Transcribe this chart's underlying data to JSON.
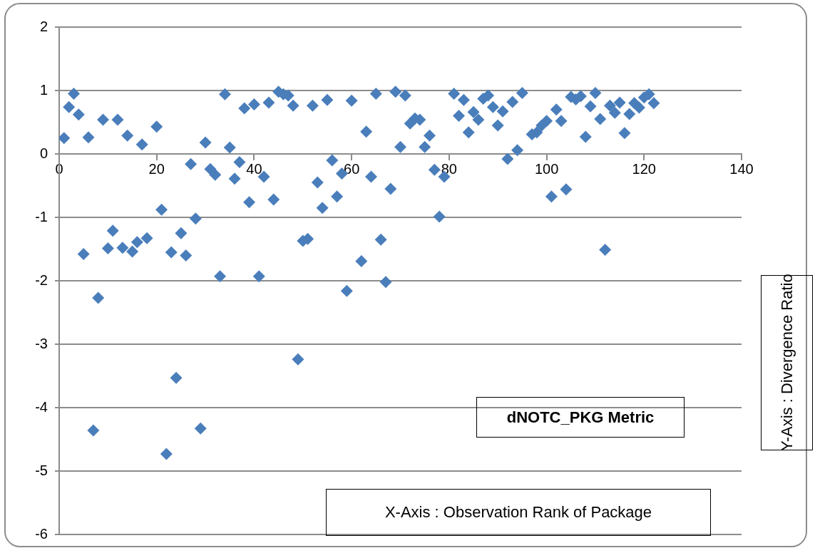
{
  "chart_data": {
    "type": "scatter",
    "xlabel": "X-Axis : Observation Rank of Package",
    "ylabel": "Y-Axis : Divergence Ratio",
    "annotations": [
      "dNOTC_PKG Metric"
    ],
    "xlim": [
      0,
      140
    ],
    "xticks": [
      0,
      20,
      40,
      60,
      80,
      100,
      120,
      140
    ],
    "ylim": [
      -6,
      2
    ],
    "yticks": [
      -6,
      -5,
      -4,
      -3,
      -2,
      -1,
      0,
      1,
      2
    ],
    "grid": "y",
    "legend": false,
    "marker": "diamond",
    "series": [
      {
        "color": "#4a7ebb",
        "x": [
          1,
          2,
          3,
          4,
          5,
          6,
          7,
          8,
          9,
          10,
          11,
          12,
          13,
          14,
          15,
          16,
          17,
          18,
          20,
          21,
          22,
          23,
          24,
          25,
          26,
          27,
          28,
          29,
          30,
          31,
          32,
          33,
          34,
          35,
          36,
          37,
          38,
          39,
          40,
          41,
          42,
          43,
          44,
          45,
          46,
          47,
          48,
          49,
          50,
          51,
          52,
          53,
          54,
          55,
          56,
          57,
          58,
          59,
          60,
          62,
          63,
          64,
          65,
          66,
          67,
          68,
          69,
          70,
          71,
          72,
          73,
          74,
          75,
          76,
          77,
          78,
          79,
          81,
          82,
          83,
          84,
          85,
          86,
          87,
          88,
          89,
          90,
          91,
          92,
          93,
          94,
          95,
          97,
          98,
          99,
          100,
          101,
          102,
          103,
          104,
          105,
          106,
          107,
          108,
          109,
          110,
          111,
          112,
          113,
          114,
          115,
          116,
          117,
          118,
          119,
          120,
          121,
          122
        ],
        "values": [
          0.25,
          0.74,
          0.95,
          0.62,
          -1.58,
          0.26,
          -4.36,
          -2.27,
          0.54,
          -1.49,
          -1.21,
          0.54,
          -1.48,
          0.29,
          -1.54,
          -1.39,
          0.15,
          -1.33,
          0.43,
          -0.88,
          -4.73,
          -1.55,
          -3.53,
          -1.25,
          -1.6,
          -0.16,
          -1.02,
          -4.33,
          0.18,
          -0.24,
          -0.33,
          -1.93,
          0.94,
          0.1,
          -0.39,
          -0.13,
          0.72,
          -0.76,
          0.78,
          -1.93,
          -0.36,
          0.81,
          -0.72,
          0.98,
          0.94,
          0.92,
          0.76,
          -3.24,
          -1.37,
          -1.34,
          0.76,
          -0.45,
          -0.85,
          0.85,
          -0.1,
          -0.67,
          -0.31,
          -2.16,
          0.84,
          -1.69,
          0.35,
          -0.36,
          0.95,
          -1.35,
          -2.02,
          -0.55,
          0.98,
          0.11,
          0.92,
          0.48,
          0.56,
          0.54,
          0.11,
          0.29,
          -0.25,
          -0.99,
          -0.36,
          0.95,
          0.6,
          0.85,
          0.34,
          0.66,
          0.54,
          0.87,
          0.92,
          0.74,
          0.45,
          0.67,
          -0.08,
          0.82,
          0.06,
          0.96,
          0.31,
          0.34,
          0.45,
          0.52,
          -0.67,
          0.7,
          0.52,
          -0.56,
          0.9,
          0.86,
          0.91,
          0.27,
          0.75,
          0.96,
          0.55,
          -1.51,
          0.76,
          0.65,
          0.81,
          0.33,
          0.63,
          0.8,
          0.73,
          0.89,
          0.94,
          0.8
        ]
      }
    ]
  }
}
